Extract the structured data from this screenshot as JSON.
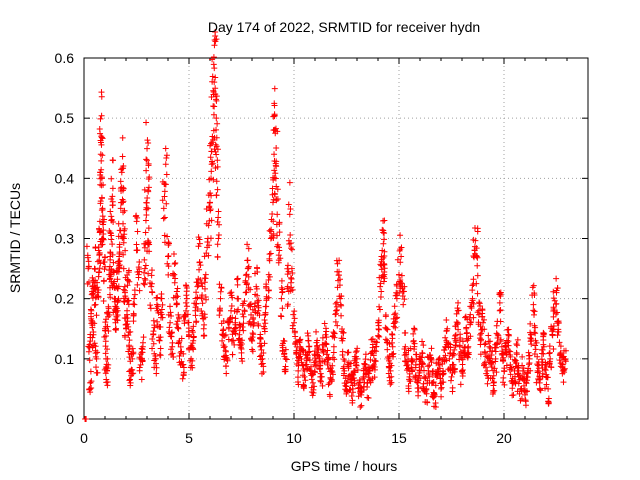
{
  "chart_data": {
    "type": "scatter",
    "title": "Day 174 of 2022, SRMTID for receiver hydn",
    "xlabel": "GPS time / hours",
    "ylabel": "SRMTID / TECUs",
    "xlim": [
      0,
      24
    ],
    "ylim": [
      0,
      0.6
    ],
    "xticks": [
      0,
      5,
      10,
      15,
      20
    ],
    "xtick_labels": [
      "0",
      "5",
      "10",
      "15",
      "20"
    ],
    "yticks": [
      0,
      0.1,
      0.2,
      0.3,
      0.4,
      0.5,
      0.6
    ],
    "ytick_labels": [
      "0",
      "0.1",
      "0.2",
      "0.3",
      "0.4",
      "0.5",
      "0.6"
    ],
    "grid": true,
    "marker": "+",
    "color": "#ff0000",
    "series": [
      {
        "name": "SRMTID",
        "points": [
          [
            0.05,
            0.0
          ],
          [
            0.08,
            0.0
          ],
          [
            0.1,
            0.0
          ],
          [
            0.2,
            0.25
          ],
          [
            0.25,
            0.12
          ],
          [
            0.3,
            0.06
          ],
          [
            0.35,
            0.18
          ],
          [
            0.4,
            0.22
          ],
          [
            0.45,
            0.14
          ],
          [
            0.5,
            0.25
          ],
          [
            0.55,
            0.19
          ],
          [
            0.6,
            0.1
          ],
          [
            0.65,
            0.21
          ],
          [
            0.7,
            0.28
          ],
          [
            0.75,
            0.31
          ],
          [
            0.8,
            0.44
          ],
          [
            0.82,
            0.47
          ],
          [
            0.85,
            0.4
          ],
          [
            0.88,
            0.35
          ],
          [
            0.9,
            0.3
          ],
          [
            0.95,
            0.23
          ],
          [
            1.0,
            0.15
          ],
          [
            1.05,
            0.1
          ],
          [
            1.1,
            0.08
          ],
          [
            1.15,
            0.17
          ],
          [
            1.2,
            0.24
          ],
          [
            1.25,
            0.27
          ],
          [
            1.3,
            0.33
          ],
          [
            1.35,
            0.37
          ],
          [
            1.4,
            0.26
          ],
          [
            1.45,
            0.2
          ],
          [
            1.5,
            0.16
          ],
          [
            1.55,
            0.22
          ],
          [
            1.6,
            0.18
          ],
          [
            1.65,
            0.25
          ],
          [
            1.7,
            0.29
          ],
          [
            1.75,
            0.35
          ],
          [
            1.8,
            0.41
          ],
          [
            1.85,
            0.36
          ],
          [
            1.9,
            0.3
          ],
          [
            1.95,
            0.21
          ],
          [
            2.0,
            0.15
          ],
          [
            2.05,
            0.18
          ],
          [
            2.1,
            0.23
          ],
          [
            2.15,
            0.12
          ],
          [
            2.2,
            0.08
          ],
          [
            2.3,
            0.1
          ],
          [
            2.4,
            0.19
          ],
          [
            2.5,
            0.29
          ],
          [
            2.6,
            0.24
          ],
          [
            2.7,
            0.09
          ],
          [
            2.8,
            0.12
          ],
          [
            2.9,
            0.25
          ],
          [
            2.95,
            0.33
          ],
          [
            3.0,
            0.43
          ],
          [
            3.05,
            0.38
          ],
          [
            3.1,
            0.29
          ],
          [
            3.2,
            0.22
          ],
          [
            3.3,
            0.14
          ],
          [
            3.4,
            0.1
          ],
          [
            3.5,
            0.18
          ],
          [
            3.6,
            0.13
          ],
          [
            3.7,
            0.2
          ],
          [
            3.8,
            0.35
          ],
          [
            3.9,
            0.39
          ],
          [
            4.0,
            0.27
          ],
          [
            4.1,
            0.16
          ],
          [
            4.2,
            0.12
          ],
          [
            4.3,
            0.24
          ],
          [
            4.4,
            0.19
          ],
          [
            4.5,
            0.15
          ],
          [
            4.6,
            0.11
          ],
          [
            4.7,
            0.09
          ],
          [
            4.8,
            0.17
          ],
          [
            4.9,
            0.2
          ],
          [
            5.0,
            0.14
          ],
          [
            5.1,
            0.1
          ],
          [
            5.2,
            0.13
          ],
          [
            5.3,
            0.18
          ],
          [
            5.4,
            0.22
          ],
          [
            5.5,
            0.26
          ],
          [
            5.6,
            0.2
          ],
          [
            5.7,
            0.15
          ],
          [
            5.8,
            0.24
          ],
          [
            5.9,
            0.3
          ],
          [
            6.0,
            0.36
          ],
          [
            6.05,
            0.4
          ],
          [
            6.1,
            0.46
          ],
          [
            6.15,
            0.52
          ],
          [
            6.2,
            0.56
          ],
          [
            6.25,
            0.54
          ],
          [
            6.3,
            0.5
          ],
          [
            6.35,
            0.43
          ],
          [
            6.4,
            0.3
          ],
          [
            6.5,
            0.2
          ],
          [
            6.6,
            0.14
          ],
          [
            6.7,
            0.12
          ],
          [
            6.8,
            0.1
          ],
          [
            6.9,
            0.15
          ],
          [
            7.0,
            0.18
          ],
          [
            7.1,
            0.13
          ],
          [
            7.2,
            0.16
          ],
          [
            7.3,
            0.2
          ],
          [
            7.4,
            0.14
          ],
          [
            7.5,
            0.11
          ],
          [
            7.6,
            0.17
          ],
          [
            7.7,
            0.21
          ],
          [
            7.8,
            0.25
          ],
          [
            7.9,
            0.19
          ],
          [
            8.0,
            0.13
          ],
          [
            8.1,
            0.16
          ],
          [
            8.2,
            0.22
          ],
          [
            8.3,
            0.18
          ],
          [
            8.4,
            0.12
          ],
          [
            8.5,
            0.1
          ],
          [
            8.6,
            0.15
          ],
          [
            8.7,
            0.2
          ],
          [
            8.8,
            0.24
          ],
          [
            8.9,
            0.3
          ],
          [
            9.0,
            0.36
          ],
          [
            9.05,
            0.44
          ],
          [
            9.1,
            0.48
          ],
          [
            9.15,
            0.42
          ],
          [
            9.2,
            0.34
          ],
          [
            9.3,
            0.28
          ],
          [
            9.4,
            0.2
          ],
          [
            9.5,
            0.13
          ],
          [
            9.6,
            0.1
          ],
          [
            9.7,
            0.22
          ],
          [
            9.8,
            0.34
          ],
          [
            9.9,
            0.25
          ],
          [
            10.0,
            0.16
          ],
          [
            10.1,
            0.11
          ],
          [
            10.2,
            0.08
          ],
          [
            10.3,
            0.12
          ],
          [
            10.4,
            0.09
          ],
          [
            10.5,
            0.07
          ],
          [
            10.6,
            0.1
          ],
          [
            10.7,
            0.13
          ],
          [
            10.8,
            0.08
          ],
          [
            10.9,
            0.06
          ],
          [
            11.0,
            0.09
          ],
          [
            11.1,
            0.12
          ],
          [
            11.2,
            0.1
          ],
          [
            11.3,
            0.07
          ],
          [
            11.4,
            0.11
          ],
          [
            11.5,
            0.14
          ],
          [
            11.6,
            0.09
          ],
          [
            11.7,
            0.06
          ],
          [
            11.8,
            0.08
          ],
          [
            11.9,
            0.12
          ],
          [
            12.0,
            0.18
          ],
          [
            12.1,
            0.23
          ],
          [
            12.2,
            0.2
          ],
          [
            12.3,
            0.13
          ],
          [
            12.4,
            0.08
          ],
          [
            12.5,
            0.06
          ],
          [
            12.6,
            0.09
          ],
          [
            12.7,
            0.07
          ],
          [
            12.8,
            0.05
          ],
          [
            12.9,
            0.08
          ],
          [
            13.0,
            0.1
          ],
          [
            13.1,
            0.06
          ],
          [
            13.2,
            0.04
          ],
          [
            13.3,
            0.07
          ],
          [
            13.4,
            0.09
          ],
          [
            13.5,
            0.06
          ],
          [
            13.6,
            0.08
          ],
          [
            13.7,
            0.11
          ],
          [
            13.8,
            0.09
          ],
          [
            13.9,
            0.12
          ],
          [
            14.0,
            0.16
          ],
          [
            14.1,
            0.22
          ],
          [
            14.2,
            0.28
          ],
          [
            14.25,
            0.31
          ],
          [
            14.3,
            0.24
          ],
          [
            14.4,
            0.15
          ],
          [
            14.5,
            0.1
          ],
          [
            14.6,
            0.08
          ],
          [
            14.7,
            0.12
          ],
          [
            14.8,
            0.16
          ],
          [
            14.9,
            0.2
          ],
          [
            15.0,
            0.24
          ],
          [
            15.1,
            0.27
          ],
          [
            15.2,
            0.19
          ],
          [
            15.3,
            0.12
          ],
          [
            15.4,
            0.09
          ],
          [
            15.5,
            0.07
          ],
          [
            15.6,
            0.1
          ],
          [
            15.7,
            0.13
          ],
          [
            15.8,
            0.09
          ],
          [
            15.9,
            0.06
          ],
          [
            16.0,
            0.08
          ],
          [
            16.1,
            0.11
          ],
          [
            16.2,
            0.07
          ],
          [
            16.3,
            0.05
          ],
          [
            16.4,
            0.08
          ],
          [
            16.5,
            0.1
          ],
          [
            16.6,
            0.06
          ],
          [
            16.7,
            0.04
          ],
          [
            16.8,
            0.07
          ],
          [
            16.9,
            0.09
          ],
          [
            17.0,
            0.05
          ],
          [
            17.1,
            0.08
          ],
          [
            17.2,
            0.12
          ],
          [
            17.3,
            0.15
          ],
          [
            17.4,
            0.1
          ],
          [
            17.5,
            0.07
          ],
          [
            17.6,
            0.09
          ],
          [
            17.7,
            0.13
          ],
          [
            17.8,
            0.18
          ],
          [
            17.9,
            0.12
          ],
          [
            18.0,
            0.08
          ],
          [
            18.1,
            0.11
          ],
          [
            18.2,
            0.15
          ],
          [
            18.3,
            0.12
          ],
          [
            18.4,
            0.16
          ],
          [
            18.5,
            0.2
          ],
          [
            18.6,
            0.28
          ],
          [
            18.7,
            0.27
          ],
          [
            18.8,
            0.18
          ],
          [
            18.9,
            0.13
          ],
          [
            19.0,
            0.16
          ],
          [
            19.1,
            0.11
          ],
          [
            19.2,
            0.08
          ],
          [
            19.3,
            0.12
          ],
          [
            19.4,
            0.09
          ],
          [
            19.5,
            0.06
          ],
          [
            19.6,
            0.1
          ],
          [
            19.7,
            0.14
          ],
          [
            19.8,
            0.18
          ],
          [
            19.9,
            0.12
          ],
          [
            20.0,
            0.08
          ],
          [
            20.1,
            0.11
          ],
          [
            20.2,
            0.14
          ],
          [
            20.3,
            0.09
          ],
          [
            20.4,
            0.06
          ],
          [
            20.5,
            0.08
          ],
          [
            20.6,
            0.11
          ],
          [
            20.7,
            0.07
          ],
          [
            20.8,
            0.05
          ],
          [
            20.9,
            0.08
          ],
          [
            21.0,
            0.04
          ],
          [
            21.1,
            0.07
          ],
          [
            21.2,
            0.1
          ],
          [
            21.3,
            0.14
          ],
          [
            21.4,
            0.19
          ],
          [
            21.5,
            0.13
          ],
          [
            21.6,
            0.08
          ],
          [
            21.7,
            0.06
          ],
          [
            21.8,
            0.09
          ],
          [
            21.9,
            0.12
          ],
          [
            22.0,
            0.07
          ],
          [
            22.1,
            0.05
          ],
          [
            22.2,
            0.1
          ],
          [
            22.3,
            0.14
          ],
          [
            22.4,
            0.18
          ],
          [
            22.5,
            0.21
          ],
          [
            22.6,
            0.16
          ],
          [
            22.7,
            0.11
          ],
          [
            22.8,
            0.08
          ],
          [
            22.9,
            0.1
          ]
        ]
      }
    ]
  }
}
